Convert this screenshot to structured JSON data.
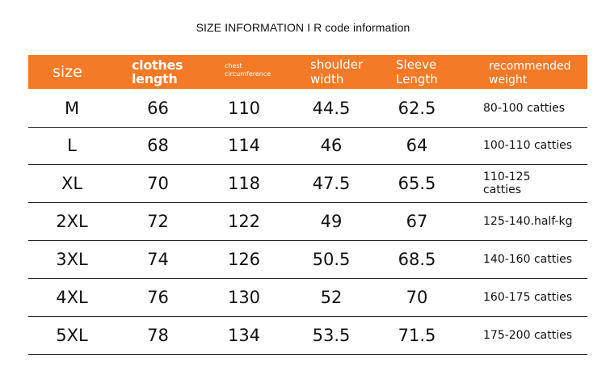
{
  "title": "SIZE INFORMATION I R code information",
  "header": {
    "size": "size",
    "clothes_length": "clothes length",
    "chest": "chest circumference",
    "shoulder": "shoulder width",
    "sleeve": "Sleeve Length",
    "weight": "recommended weight"
  },
  "rows": [
    {
      "size": "M",
      "length": "66",
      "chest": "110",
      "shoulder": "44.5",
      "sleeve": "62.5",
      "weight": "80-100 catties"
    },
    {
      "size": "L",
      "length": "68",
      "chest": "114",
      "shoulder": "46",
      "sleeve": "64",
      "weight": "100-110 catties"
    },
    {
      "size": "XL",
      "length": "70",
      "chest": "118",
      "shoulder": "47.5",
      "sleeve": "65.5",
      "weight": "110-125 catties"
    },
    {
      "size": "2XL",
      "length": "72",
      "chest": "122",
      "shoulder": "49",
      "sleeve": "67",
      "weight": "125-140.half-kg"
    },
    {
      "size": "3XL",
      "length": "74",
      "chest": "126",
      "shoulder": "50.5",
      "sleeve": "68.5",
      "weight": "140-160 catties"
    },
    {
      "size": "4XL",
      "length": "76",
      "chest": "130",
      "shoulder": "52",
      "sleeve": "70",
      "weight": "160-175 catties"
    },
    {
      "size": "5XL",
      "length": "78",
      "chest": "134",
      "shoulder": "53.5",
      "sleeve": "71.5",
      "weight": "175-200 catties"
    }
  ],
  "colors": {
    "header_bg": "#f47a27",
    "header_text": "#ffffff",
    "rule": "#222222"
  }
}
